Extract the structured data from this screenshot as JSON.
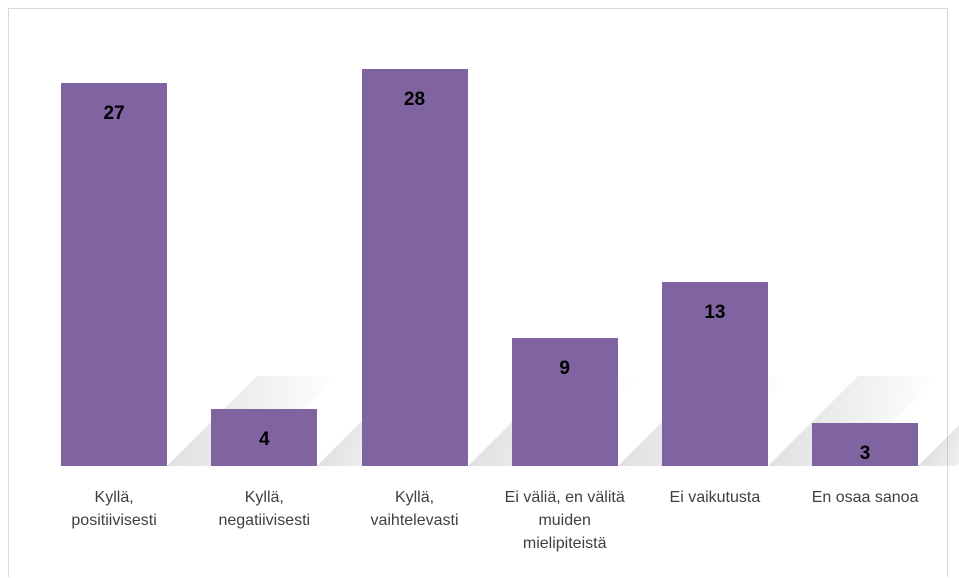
{
  "chart_data": {
    "type": "bar",
    "categories": [
      "Kyllä, positiivisesti",
      "Kyllä, negatiivisesti",
      "Kyllä, vaihtelevasti",
      "Ei väliä, en välitä muiden mielipiteistä",
      "Ei vaikutusta",
      "En osaa sanoa"
    ],
    "values": [
      27,
      4,
      28,
      9,
      13,
      3
    ],
    "color": "#8064a2"
  }
}
